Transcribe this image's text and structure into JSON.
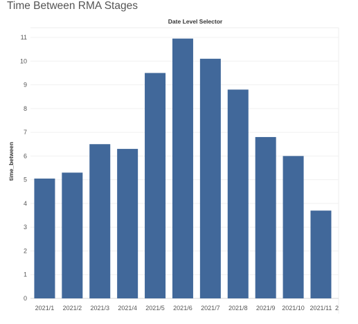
{
  "dashboard": {
    "title": "Time Between RMA Stages"
  },
  "chart_data": {
    "type": "bar",
    "title": "Date Level Selector",
    "xlabel": "",
    "ylabel": "time_between",
    "categories": [
      "2021/1",
      "2021/2",
      "2021/3",
      "2021/4",
      "2021/5",
      "2021/6",
      "2021/7",
      "2021/8",
      "2021/9",
      "2021/10",
      "2021/11"
    ],
    "values": [
      5.05,
      5.3,
      6.5,
      6.3,
      9.5,
      10.95,
      10.1,
      8.8,
      6.8,
      6.0,
      3.7
    ],
    "ylim": [
      0,
      11.5
    ],
    "yticks": [
      0,
      1,
      2,
      3,
      4,
      5,
      6,
      7,
      8,
      9,
      10,
      11
    ],
    "trailing_tick_label": "2",
    "bar_color": "#41689a",
    "grid": true,
    "legend": "none"
  }
}
